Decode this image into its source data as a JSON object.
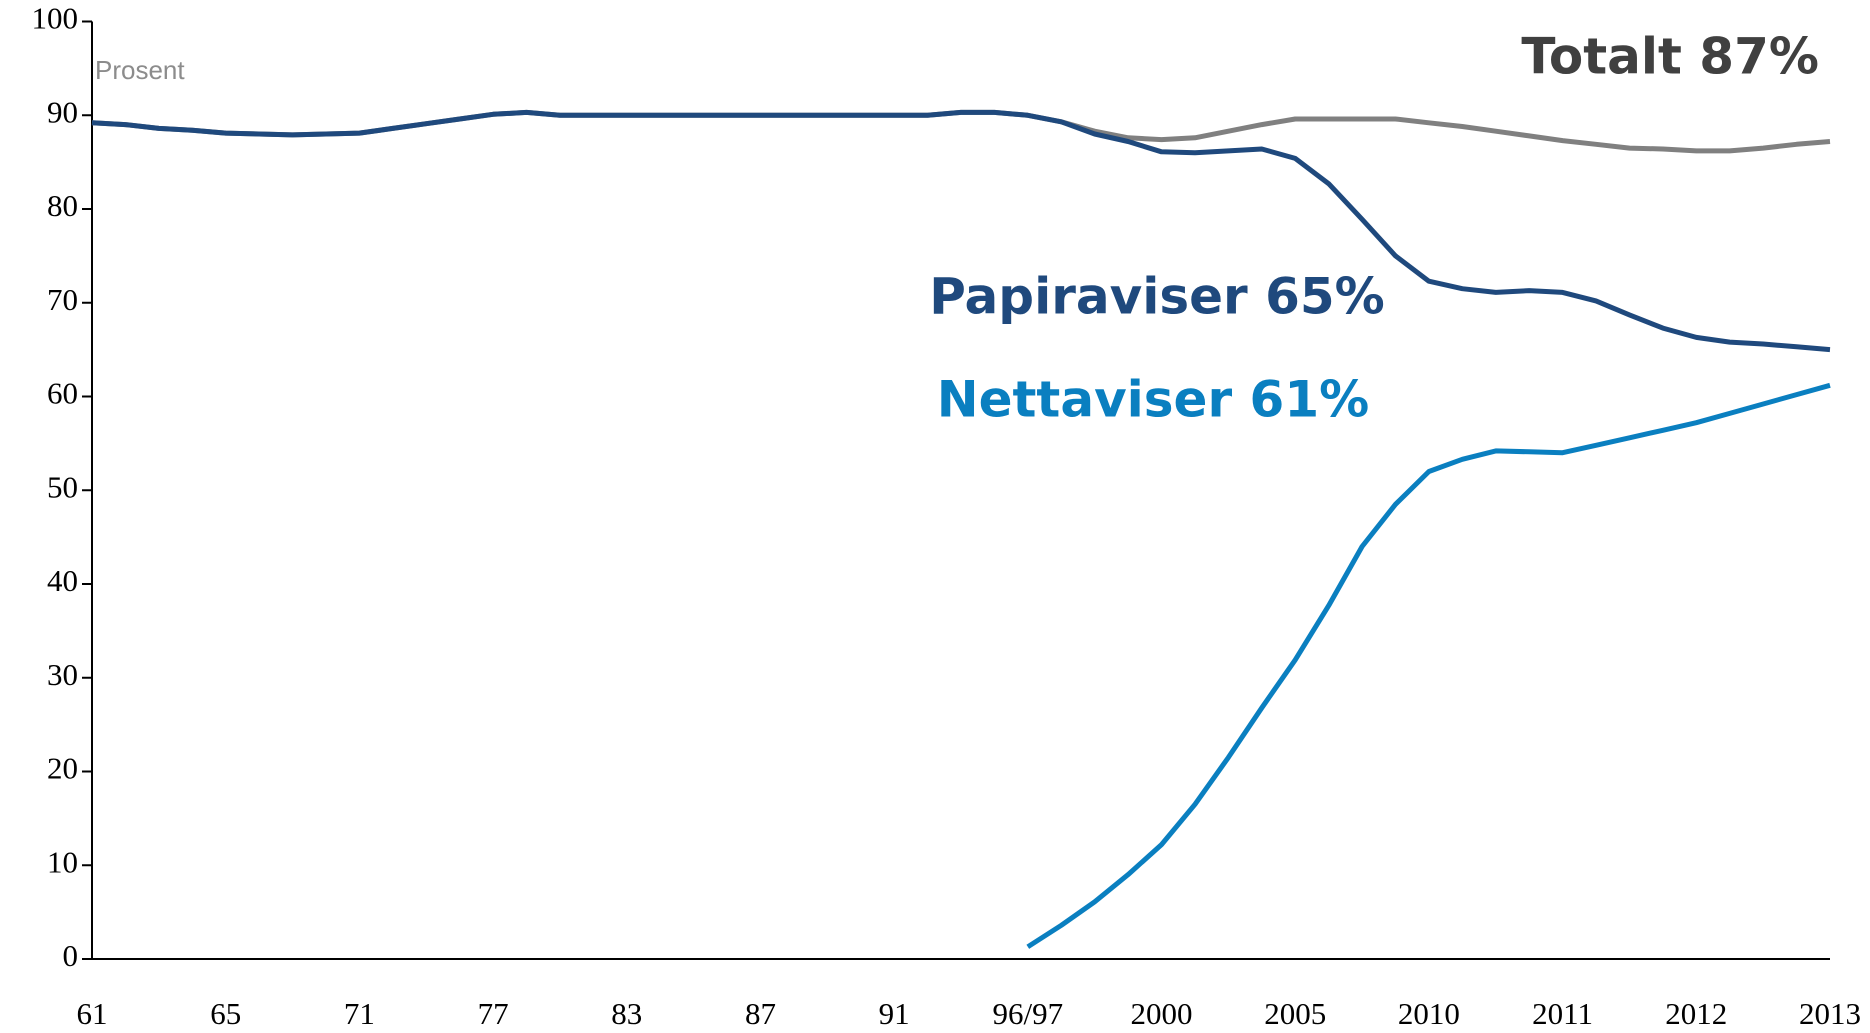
{
  "chart_data": {
    "type": "line",
    "ylabel": "Prosent",
    "categories": [
      "61",
      null,
      null,
      null,
      "65",
      null,
      null,
      null,
      "71",
      null,
      null,
      null,
      "77",
      null,
      null,
      null,
      "83",
      null,
      null,
      null,
      "87",
      null,
      null,
      null,
      "91",
      null,
      null,
      null,
      "96/97",
      null,
      null,
      null,
      "2000",
      null,
      null,
      null,
      "2005",
      null,
      null,
      null,
      "2010",
      null,
      null,
      null,
      "2011",
      null,
      null,
      null,
      "2012",
      null,
      null,
      null,
      "2013"
    ],
    "ylim": [
      0,
      100
    ],
    "yticks": [
      0,
      10,
      20,
      30,
      40,
      50,
      60,
      70,
      80,
      90,
      100
    ],
    "grid": false,
    "series": [
      {
        "name": "Totalt 87%",
        "color": "#808080",
        "label_color": "#404040",
        "values": [
          89.2,
          89.0,
          88.6,
          88.4,
          88.1,
          88.0,
          87.9,
          88.0,
          88.1,
          88.6,
          89.1,
          89.6,
          90.1,
          90.3,
          90.0,
          90.0,
          90.0,
          90,
          90,
          90,
          90,
          90,
          90,
          90,
          90,
          90.0,
          90.3,
          90.3,
          90.0,
          89.3,
          88.3,
          87.6,
          87.4,
          87.6,
          88.3,
          89.0,
          89.6,
          89.6,
          89.6,
          89.6,
          89.2,
          88.8,
          88.3,
          87.8,
          87.3,
          86.9,
          86.5,
          86.4,
          86.2,
          86.2,
          86.5,
          86.9,
          87.2
        ]
      },
      {
        "name": "Papiraviser 65%",
        "color": "#1f497d",
        "label_color": "#1f497d",
        "values": [
          89.2,
          89.0,
          88.6,
          88.4,
          88.1,
          88.0,
          87.9,
          88.0,
          88.1,
          88.6,
          89.1,
          89.6,
          90.1,
          90.3,
          90.0,
          90.0,
          90.0,
          90,
          90,
          90,
          90,
          90,
          90,
          90,
          90,
          90.0,
          90.3,
          90.3,
          90.0,
          89.3,
          88.0,
          87.2,
          86.1,
          86.0,
          86.2,
          86.4,
          85.4,
          82.7,
          78.9,
          75.0,
          72.3,
          71.5,
          71.1,
          71.3,
          71.1,
          70.2,
          68.7,
          67.3,
          66.3,
          65.8,
          65.6,
          65.3,
          65.0
        ]
      },
      {
        "name": "Nettaviser 61%",
        "color": "#0a7fc0",
        "label_color": "#0a7fc0",
        "values": [
          null,
          null,
          null,
          null,
          null,
          null,
          null,
          null,
          null,
          null,
          null,
          null,
          null,
          null,
          null,
          null,
          null,
          null,
          null,
          null,
          null,
          null,
          null,
          null,
          null,
          null,
          null,
          null,
          1.3,
          3.6,
          6.1,
          9.0,
          12.2,
          16.5,
          21.5,
          26.8,
          31.9,
          37.7,
          44.0,
          48.5,
          52.0,
          53.3,
          54.2,
          54.1,
          54.0,
          54.8,
          55.6,
          56.4,
          57.2,
          58.2,
          59.2,
          60.2,
          61.2
        ]
      }
    ]
  }
}
